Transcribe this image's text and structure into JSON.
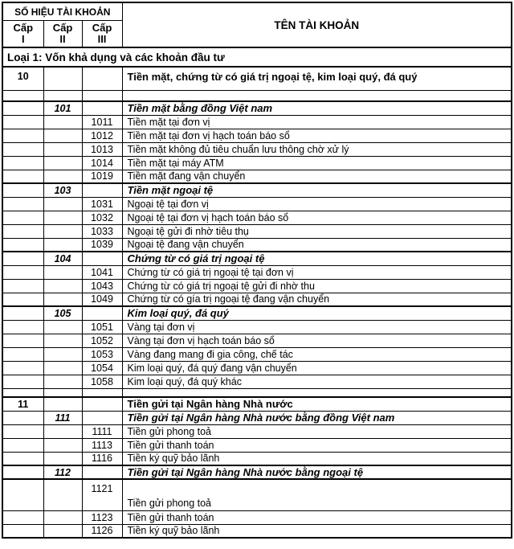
{
  "table": {
    "header": {
      "account_number_title": "SỐ HIỆU TÀI KHOẢN",
      "account_name_title": "TÊN TÀI KHOẢN",
      "level_columns": [
        {
          "line1": "Cấp",
          "line2": "I"
        },
        {
          "line1": "Cấp",
          "line2": "II"
        },
        {
          "line1": "Cấp",
          "line2": "III"
        }
      ]
    },
    "class_header": "Loại 1: Vốn khả dụng và các khoản đầu tư",
    "rows": [
      {
        "code": "10",
        "level": 1,
        "name": "Tiền mặt, chứng từ có giá trị ngoại tệ, kim loại quý, đá quý",
        "variant": "tall"
      },
      {
        "code": "",
        "level": 0,
        "name": "",
        "variant": "spacer"
      },
      {
        "code": "101",
        "level": 2,
        "name": "Tiền mặt bằng đồng Việt nam"
      },
      {
        "code": "1011",
        "level": 3,
        "name": "Tiền mặt tại đơn vị"
      },
      {
        "code": "1012",
        "level": 3,
        "name": "Tiền mặt tại đơn vị hạch toán báo sổ"
      },
      {
        "code": "1013",
        "level": 3,
        "name": "Tiền mặt không đủ tiêu chuẩn lưu thông chờ xử lý"
      },
      {
        "code": "1014",
        "level": 3,
        "name": "Tiền mặt tại máy ATM"
      },
      {
        "code": "1019",
        "level": 3,
        "name": "Tiền mặt đang vận chuyển"
      },
      {
        "code": "103",
        "level": 2,
        "name": "Tiền mặt ngoại tệ"
      },
      {
        "code": "1031",
        "level": 3,
        "name": "Ngoại tệ tại đơn vị"
      },
      {
        "code": "1032",
        "level": 3,
        "name": "Ngoại tệ tại đơn vị hạch toán báo sổ"
      },
      {
        "code": "1033",
        "level": 3,
        "name": "Ngoại tệ gửi đi nhờ tiêu thụ"
      },
      {
        "code": "1039",
        "level": 3,
        "name": "Ngoại tệ đang vận chuyển"
      },
      {
        "code": "104",
        "level": 2,
        "name": "Chứng từ có giá trị ngoại tệ"
      },
      {
        "code": "1041",
        "level": 3,
        "name": "Chứng từ có giá trị ngoại tệ  tại đơn vị"
      },
      {
        "code": "1043",
        "level": 3,
        "name": "Chứng từ có giá trị ngoại tệ gửi đi nhờ thu"
      },
      {
        "code": "1049",
        "level": 3,
        "name": "Chứng từ có gía trị ngoại tệ đang vận chuyển"
      },
      {
        "code": "105",
        "level": 2,
        "name": "Kim loại quý, đá quý"
      },
      {
        "code": "1051",
        "level": 3,
        "name": "Vàng tại đơn vị"
      },
      {
        "code": "1052",
        "level": 3,
        "name": "Vàng tại đơn vị hạch toán báo sổ"
      },
      {
        "code": "1053",
        "level": 3,
        "name": "Vàng đang mang đi gia công, chế tác"
      },
      {
        "code": "1054",
        "level": 3,
        "name": "Kim loại quý, đá quý đang vận chuyển"
      },
      {
        "code": "1058",
        "level": 3,
        "name": "Kim loại quý, đá quý khác"
      },
      {
        "code": "",
        "level": 0,
        "name": "",
        "variant": "spacer2"
      },
      {
        "code": "11",
        "level": 1,
        "name": "Tiền gửi tại Ngân hàng Nhà nước"
      },
      {
        "code": "111",
        "level": 2,
        "name": "Tiền gửi tại Ngân hàng Nhà nước bằng đồng Việt nam",
        "variant": "thin-top"
      },
      {
        "code": "1111",
        "level": 3,
        "name": "Tiền gửi phong toả"
      },
      {
        "code": "1113",
        "level": 3,
        "name": "Tiền gửi thanh toán"
      },
      {
        "code": "1116",
        "level": 3,
        "name": "Tiền ký quỹ bảo lãnh"
      },
      {
        "code": "112",
        "level": 2,
        "name": "Tiền gửi tại Ngân hàng Nhà nước bằng ngoại tệ"
      },
      {
        "code": "1121",
        "level": 3,
        "name": "Tiền gửi phong toả",
        "variant": "split"
      },
      {
        "code": "1123",
        "level": 3,
        "name": "Tiền gửi thanh toán"
      },
      {
        "code": "1126",
        "level": 3,
        "name": "Tiền ký quỹ bảo lãnh"
      }
    ]
  },
  "colors": {
    "border": "#000000",
    "text": "#000000",
    "background": "#ffffff"
  }
}
